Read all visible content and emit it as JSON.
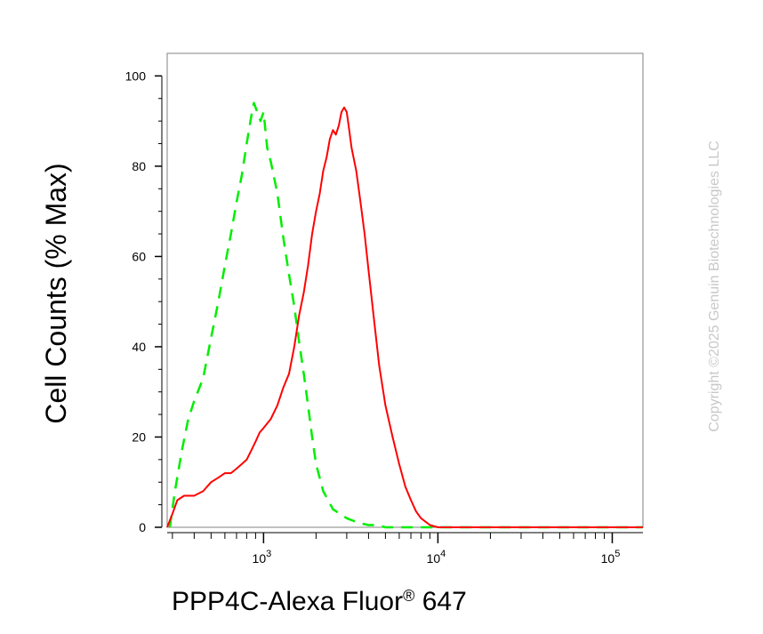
{
  "chart_data": {
    "type": "line",
    "xscale": "log",
    "xlim": [
      280,
      150000
    ],
    "ylim": [
      0,
      105
    ],
    "xlabel_main": "PPP4C-Alexa Fluor",
    "xlabel_reg": "®",
    "xlabel_tail": " 647",
    "ylabel": "Cell Counts (% Max)",
    "yticks": [
      {
        "value": 0,
        "label": "0"
      },
      {
        "value": 20,
        "label": "20"
      },
      {
        "value": 40,
        "label": "40"
      },
      {
        "value": 60,
        "label": "60"
      },
      {
        "value": 80,
        "label": "80"
      },
      {
        "value": 100,
        "label": "100"
      }
    ],
    "xticks": [
      {
        "value": 1000,
        "base": "10",
        "exp": "3"
      },
      {
        "value": 10000,
        "base": "10",
        "exp": "4"
      },
      {
        "value": 100000,
        "base": "10",
        "exp": "5"
      }
    ],
    "series": [
      {
        "color": "#00ee00",
        "style": "dashed",
        "x": [
          290,
          310,
          340,
          370,
          400,
          450,
          500,
          550,
          600,
          650,
          700,
          750,
          800,
          850,
          880,
          920,
          960,
          1000,
          1050,
          1100,
          1200,
          1300,
          1400,
          1500,
          1600,
          1700,
          1800,
          1900,
          2000,
          2200,
          2500,
          3000,
          3500,
          4000,
          4500,
          5000,
          6000,
          7000,
          8000,
          9000,
          10000,
          15000,
          30000,
          60000,
          150000
        ],
        "y": [
          0,
          8,
          17,
          24,
          28,
          33,
          42,
          50,
          58,
          65,
          72,
          78,
          85,
          91,
          94,
          92,
          90,
          92,
          84,
          81,
          74,
          64,
          56,
          49,
          41,
          34,
          27,
          20,
          14,
          8,
          4,
          2,
          1,
          0.5,
          0.5,
          0,
          0,
          0,
          0,
          0,
          0,
          0,
          0,
          0,
          0
        ]
      },
      {
        "color": "#ff0000",
        "style": "solid",
        "x": [
          280,
          300,
          320,
          350,
          400,
          450,
          500,
          550,
          600,
          650,
          700,
          750,
          800,
          850,
          900,
          950,
          1000,
          1100,
          1200,
          1300,
          1400,
          1500,
          1600,
          1700,
          1800,
          1900,
          2000,
          2100,
          2200,
          2300,
          2400,
          2500,
          2600,
          2700,
          2800,
          2900,
          3000,
          3100,
          3200,
          3400,
          3600,
          3800,
          4000,
          4300,
          4600,
          5000,
          5500,
          6000,
          6500,
          7000,
          7500,
          8000,
          9000,
          10000,
          12000,
          20000,
          50000,
          100000,
          150000
        ],
        "y": [
          0,
          3,
          6,
          7,
          7,
          8,
          10,
          11,
          12,
          12,
          13,
          14,
          15,
          17,
          19,
          21,
          22,
          24,
          27,
          31,
          34,
          40,
          47,
          52,
          58,
          65,
          70,
          74,
          79,
          82,
          86,
          88,
          87,
          89,
          92,
          93,
          92,
          88,
          84,
          79,
          72,
          65,
          57,
          46,
          36,
          27,
          20,
          14,
          9,
          6,
          3.5,
          2,
          0.5,
          0,
          0,
          0,
          0,
          0,
          0
        ]
      }
    ]
  },
  "copyright": "Copyright ©2025 Genuin Biotechnologies LLC"
}
